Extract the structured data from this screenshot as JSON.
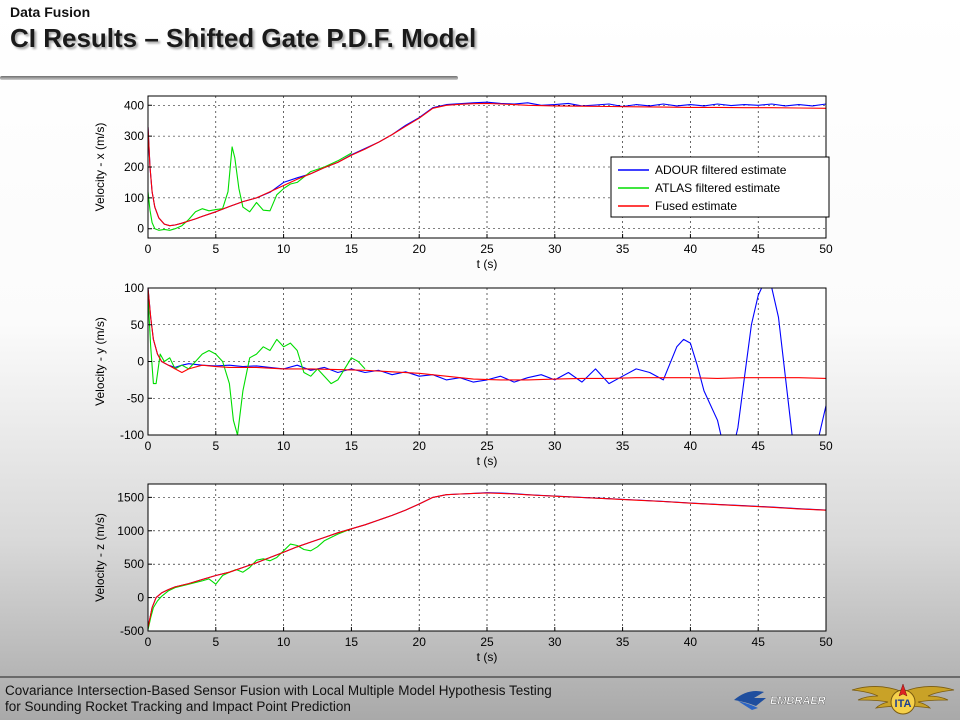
{
  "header": {
    "section": "Data Fusion",
    "title": "CI Results – Shifted Gate P.D.F. Model"
  },
  "footer": {
    "line1": "Covariance Intersection-Based Sensor Fusion with Local Multiple Model Hypothesis Testing",
    "line2": "for Sounding Rocket Tracking and Impact Point Prediction",
    "logo_left_text": "EMBRAER",
    "logo_right_text": "ITA"
  },
  "colors": {
    "adour": "#0000ff",
    "atlas": "#00dd00",
    "fused": "#ff0000",
    "brand_blue": "#1f4e9e"
  },
  "legend": {
    "placement": "top-right, first subplot",
    "entries": [
      "ADOUR filtered estimate",
      "ATLAS filtered estimate",
      "Fused estimate"
    ]
  },
  "chart_data": [
    {
      "type": "line",
      "xlabel": "t (s)",
      "ylabel": "Velocity - x (m/s)",
      "xlim": [
        0,
        50
      ],
      "ylim": [
        -30,
        430
      ],
      "xticks": [
        0,
        5,
        10,
        15,
        20,
        25,
        30,
        35,
        40,
        45,
        50
      ],
      "yticks": [
        0,
        100,
        200,
        300,
        400
      ],
      "grid": true,
      "series": [
        {
          "name": "ADOUR filtered estimate",
          "color": "#0000ff",
          "x": [
            0,
            0.15,
            0.3,
            0.5,
            0.8,
            1.2,
            1.6,
            2,
            2.5,
            3,
            3.5,
            4,
            5,
            6,
            7,
            8,
            9,
            10,
            11,
            12,
            13,
            14,
            15,
            16,
            17,
            18,
            19,
            20,
            21,
            22,
            23,
            24,
            25,
            26,
            27,
            28,
            29,
            30,
            31,
            32,
            33,
            34,
            35,
            36,
            37,
            38,
            39,
            40,
            41,
            42,
            43,
            44,
            45,
            46,
            47,
            48,
            49,
            50
          ],
          "y": [
            330,
            200,
            120,
            70,
            35,
            15,
            10,
            12,
            18,
            25,
            32,
            40,
            55,
            72,
            88,
            100,
            118,
            150,
            165,
            178,
            198,
            215,
            240,
            260,
            280,
            305,
            335,
            360,
            392,
            402,
            405,
            408,
            410,
            406,
            404,
            408,
            400,
            402,
            406,
            398,
            401,
            404,
            396,
            402,
            398,
            404,
            398,
            402,
            398,
            404,
            399,
            402,
            400,
            404,
            398,
            402,
            398,
            404
          ]
        },
        {
          "name": "ATLAS filtered estimate",
          "color": "#00dd00",
          "x": [
            0,
            0.15,
            0.3,
            0.5,
            0.8,
            1.2,
            1.6,
            2,
            2.5,
            3,
            3.5,
            4,
            4.5,
            5,
            5.5,
            5.9,
            6.2,
            6.4,
            6.7,
            7,
            7.5,
            8,
            8.5,
            9,
            9.5,
            10,
            10.5,
            11,
            12,
            13,
            14,
            15
          ],
          "y": [
            120,
            60,
            20,
            0,
            -5,
            -2,
            -5,
            0,
            10,
            30,
            55,
            65,
            58,
            62,
            65,
            120,
            265,
            230,
            130,
            70,
            55,
            85,
            60,
            58,
            110,
            130,
            145,
            150,
            185,
            200,
            220,
            245
          ]
        },
        {
          "name": "Fused estimate",
          "color": "#ff0000",
          "x": [
            0,
            0.15,
            0.3,
            0.5,
            0.8,
            1.2,
            1.6,
            2,
            2.5,
            3,
            3.5,
            4,
            5,
            6,
            7,
            8,
            9,
            10,
            11,
            12,
            13,
            14,
            15,
            16,
            17,
            18,
            19,
            20,
            21,
            22,
            23,
            24,
            25,
            26,
            27,
            28,
            30,
            32,
            34,
            36,
            38,
            40,
            42,
            44,
            46,
            48,
            50
          ],
          "y": [
            330,
            200,
            120,
            70,
            35,
            15,
            10,
            12,
            18,
            25,
            32,
            40,
            55,
            72,
            88,
            100,
            120,
            140,
            160,
            178,
            198,
            215,
            238,
            258,
            280,
            305,
            332,
            358,
            390,
            400,
            403,
            405,
            406,
            404,
            402,
            400,
            398,
            397,
            396,
            395,
            394,
            393,
            393,
            392,
            392,
            391,
            390
          ]
        }
      ]
    },
    {
      "type": "line",
      "xlabel": "t (s)",
      "ylabel": "Velocity - y (m/s)",
      "xlim": [
        0,
        50
      ],
      "ylim": [
        -100,
        100
      ],
      "xticks": [
        0,
        5,
        10,
        15,
        20,
        25,
        30,
        35,
        40,
        45,
        50
      ],
      "yticks": [
        -100,
        -50,
        0,
        50,
        100
      ],
      "grid": true,
      "series": [
        {
          "name": "ADOUR filtered estimate",
          "color": "#0000ff",
          "x": [
            0,
            0.2,
            0.4,
            0.7,
            1,
            1.5,
            2,
            2.5,
            3,
            4,
            5,
            6,
            7,
            8,
            9,
            10,
            11,
            12,
            13,
            14,
            15,
            16,
            17,
            18,
            19,
            20,
            21,
            22,
            23,
            24,
            25,
            26,
            27,
            28,
            29,
            30,
            31,
            32,
            33,
            34,
            35,
            36,
            37,
            38,
            39,
            39.5,
            40,
            40.5,
            41,
            42,
            42.5,
            43,
            43.5,
            44,
            44.5,
            45,
            45.5,
            46,
            46.5,
            47,
            47.5,
            48,
            48.5,
            49,
            49.5,
            50
          ],
          "y": [
            100,
            60,
            30,
            10,
            0,
            -5,
            -8,
            -5,
            -3,
            -5,
            -6,
            -5,
            -7,
            -6,
            -8,
            -10,
            -5,
            -12,
            -8,
            -15,
            -10,
            -15,
            -12,
            -18,
            -14,
            -20,
            -18,
            -25,
            -22,
            -28,
            -25,
            -20,
            -28,
            -22,
            -18,
            -25,
            -15,
            -28,
            -10,
            -30,
            -20,
            -10,
            -15,
            -25,
            20,
            30,
            25,
            -5,
            -40,
            -80,
            -120,
            -130,
            -90,
            -20,
            50,
            90,
            110,
            100,
            60,
            -20,
            -100,
            -140,
            -120,
            -100,
            -100,
            -60
          ]
        },
        {
          "name": "ATLAS filtered estimate",
          "color": "#00dd00",
          "x": [
            0,
            0.2,
            0.4,
            0.6,
            0.9,
            1.2,
            1.6,
            2,
            2.5,
            3,
            3.5,
            4,
            4.5,
            5,
            5.5,
            6,
            6.3,
            6.6,
            7,
            7.5,
            8,
            8.5,
            9,
            9.5,
            10,
            10.5,
            11,
            11.5,
            12,
            12.5,
            13,
            13.5,
            14,
            14.5,
            15,
            15.5,
            16
          ],
          "y": [
            90,
            20,
            -30,
            -30,
            10,
            0,
            5,
            -10,
            -5,
            -10,
            0,
            10,
            15,
            10,
            0,
            -30,
            -80,
            -100,
            -40,
            5,
            10,
            20,
            15,
            30,
            20,
            25,
            15,
            -15,
            -20,
            -10,
            -20,
            -30,
            -25,
            -10,
            5,
            0,
            -10
          ]
        },
        {
          "name": "Fused estimate",
          "color": "#ff0000",
          "x": [
            0,
            0.2,
            0.4,
            0.7,
            1,
            1.5,
            2,
            2.5,
            3,
            4,
            5,
            6,
            8,
            10,
            12,
            14,
            16,
            18,
            20,
            22,
            24,
            26,
            28,
            30,
            32,
            34,
            36,
            38,
            40,
            42,
            44,
            46,
            48,
            50
          ],
          "y": [
            100,
            60,
            30,
            10,
            0,
            -5,
            -10,
            -15,
            -10,
            -5,
            -7,
            -8,
            -8,
            -10,
            -10,
            -11,
            -12,
            -14,
            -16,
            -20,
            -24,
            -25,
            -25,
            -24,
            -23,
            -23,
            -22,
            -22,
            -22,
            -23,
            -22,
            -22,
            -22,
            -23
          ]
        }
      ]
    },
    {
      "type": "line",
      "xlabel": "t (s)",
      "ylabel": "Velocity - z (m/s)",
      "xlim": [
        0,
        50
      ],
      "ylim": [
        -500,
        1700
      ],
      "xticks": [
        0,
        5,
        10,
        15,
        20,
        25,
        30,
        35,
        40,
        45,
        50
      ],
      "yticks": [
        -500,
        0,
        500,
        1000,
        1500
      ],
      "grid": true,
      "series": [
        {
          "name": "ADOUR filtered estimate",
          "color": "#0000ff",
          "x": [
            0,
            0.3,
            0.6,
            1,
            1.5,
            2,
            3,
            4,
            5,
            6,
            7,
            8,
            9,
            10,
            11,
            12,
            13,
            14,
            15,
            16,
            17,
            18,
            19,
            20,
            21,
            22,
            23,
            24,
            25,
            26,
            27,
            28,
            29,
            30,
            32,
            34,
            36,
            38,
            40,
            42,
            44,
            46,
            48,
            50
          ],
          "y": [
            -450,
            -150,
            0,
            70,
            120,
            160,
            210,
            270,
            330,
            380,
            450,
            520,
            600,
            680,
            760,
            830,
            900,
            970,
            1030,
            1090,
            1160,
            1230,
            1310,
            1400,
            1500,
            1540,
            1550,
            1560,
            1570,
            1565,
            1555,
            1540,
            1530,
            1520,
            1500,
            1480,
            1460,
            1440,
            1415,
            1395,
            1375,
            1355,
            1330,
            1310
          ]
        },
        {
          "name": "ATLAS filtered estimate",
          "color": "#00dd00",
          "x": [
            0,
            0.2,
            0.4,
            0.7,
            1,
            1.5,
            2,
            3,
            4,
            4.5,
            5,
            5.5,
            6,
            6.5,
            7,
            7.5,
            8,
            8.5,
            9,
            9.5,
            10,
            10.5,
            11,
            11.5,
            12,
            12.5,
            13,
            14,
            15
          ],
          "y": [
            -480,
            -300,
            -150,
            -50,
            20,
            100,
            150,
            200,
            250,
            280,
            200,
            330,
            380,
            420,
            380,
            450,
            560,
            580,
            550,
            600,
            700,
            800,
            780,
            720,
            700,
            760,
            850,
            950,
            1030
          ]
        },
        {
          "name": "Fused estimate",
          "color": "#ff0000",
          "x": [
            0,
            0.3,
            0.6,
            1,
            1.5,
            2,
            3,
            4,
            5,
            6,
            7,
            8,
            9,
            10,
            11,
            12,
            13,
            14,
            15,
            16,
            17,
            18,
            19,
            20,
            21,
            22,
            23,
            24,
            25,
            26,
            27,
            28,
            29,
            30,
            32,
            34,
            36,
            38,
            40,
            42,
            44,
            46,
            48,
            50
          ],
          "y": [
            -450,
            -150,
            0,
            70,
            120,
            160,
            210,
            270,
            330,
            380,
            450,
            520,
            600,
            680,
            760,
            830,
            900,
            970,
            1030,
            1090,
            1160,
            1230,
            1310,
            1400,
            1500,
            1540,
            1550,
            1560,
            1565,
            1560,
            1550,
            1538,
            1528,
            1518,
            1498,
            1478,
            1458,
            1438,
            1412,
            1392,
            1372,
            1352,
            1328,
            1308
          ]
        }
      ]
    }
  ]
}
